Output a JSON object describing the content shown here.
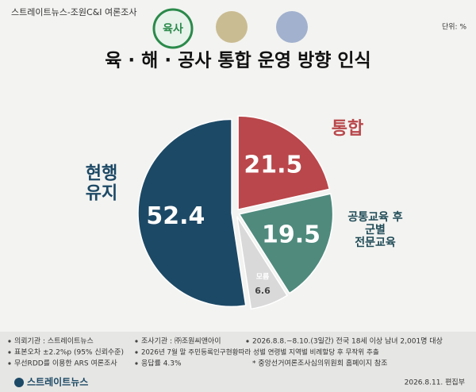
{
  "header": {
    "source_line": "스트레이트뉴스-조원C&I 여론조사",
    "unit": "단위: %",
    "badge": "육사"
  },
  "chart_data": {
    "type": "pie",
    "title": "육 · 해 · 공사 통합 운영 방향 인식",
    "categories": [
      [
        "통합"
      ],
      [
        "공통교육 후",
        "군별",
        "전문교육"
      ],
      [
        "모름"
      ],
      [
        "현행",
        "유지"
      ]
    ],
    "values": [
      21.5,
      19.5,
      6.6,
      52.4
    ],
    "colors": [
      "#b9474b",
      "#4f8a7d",
      "#d9d9d9",
      "#1c4966"
    ],
    "label_colors": [
      "#b9474b",
      "#1f4b57",
      "#ffffff",
      "#1c4966"
    ]
  },
  "footer": {
    "notes": [
      "의뢰기관 : 스트레이트뉴스",
      "조사기관 : ㈜조원씨앤아이",
      "2026.8.8.~8.10.(3일간) 전국 18세 이상 남녀 2,001명 대상",
      "표본오차 ±2.2%p (95% 신뢰수준)",
      "2026년 7월 말 주민등록인구현황따라 성별 연령별 지역별 비례할당 후 무작위 추출",
      "무선RDD를 이용한 ARS 여론조사",
      "응답률 4.3%",
      "* 중앙선거여론조사심의위원회 홈페이지 참조"
    ],
    "brand": "스트레이트뉴스",
    "date": "2026.8.11.  편집부"
  }
}
